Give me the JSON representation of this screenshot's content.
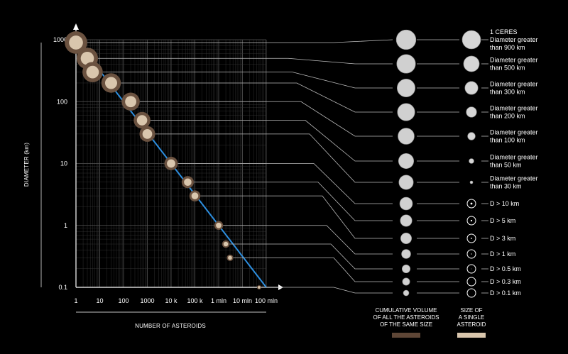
{
  "chart_data": {
    "type": "scatter",
    "title": "",
    "xlabel": "NUMBER OF ASTEROIDS",
    "ylabel": "DIAMETER (km)",
    "x_scale": "log",
    "y_scale": "log",
    "xlim": [
      1,
      100000000
    ],
    "ylim": [
      0.1,
      1000
    ],
    "grid": true,
    "x_ticks": [
      "1",
      "10",
      "100",
      "1000",
      "10 k",
      "100 k",
      "1 mln",
      "10 mln",
      "100 mln"
    ],
    "y_ticks": [
      "1000",
      "100",
      "10",
      "1",
      "0.1"
    ],
    "series": [
      {
        "name": "CUMULATIVE VOLUME OF ALL THE ASTEROIDS OF THE SAME SIZE",
        "points": [
          {
            "x": 1,
            "y": 900,
            "label": "1 CERES Diameter greater than 900 km"
          },
          {
            "x": 3,
            "y": 500,
            "label": "Diameter greater than 500 km"
          },
          {
            "x": 5,
            "y": 300,
            "label": "Diameter greater than 300 km"
          },
          {
            "x": 30,
            "y": 200,
            "label": "Diameter greater than 200 km"
          },
          {
            "x": 200,
            "y": 100,
            "label": "Diameter greater than 100 km"
          },
          {
            "x": 600,
            "y": 50,
            "label": "Diameter greater than 50 km"
          },
          {
            "x": 1000,
            "y": 30,
            "label": "Diameter greater than 30 km"
          },
          {
            "x": 10000,
            "y": 10,
            "label": "D > 10 km"
          },
          {
            "x": 50000,
            "y": 5,
            "label": "D > 5 km"
          },
          {
            "x": 100000,
            "y": 3,
            "label": "D > 3 km"
          },
          {
            "x": 1000000,
            "y": 1,
            "label": "D > 1 km"
          },
          {
            "x": 2000000,
            "y": 0.5,
            "label": "D > 0.5 km"
          },
          {
            "x": 3000000,
            "y": 0.3,
            "label": "D > 0.3 km"
          },
          {
            "x": 50000000,
            "y": 0.1,
            "label": "D > 0.1 km"
          }
        ]
      },
      {
        "name": "SIZE OF A SINGLE ASTEROID",
        "points": []
      }
    ],
    "trend_line": {
      "x": [
        1,
        100000000
      ],
      "y": [
        1000,
        0.1
      ],
      "color": "#2d8fe0"
    },
    "legend": {
      "placement": "bottom-right",
      "items": [
        {
          "text_lines": [
            "CUMULATIVE VOLUME",
            "OF ALL THE ASTEROIDS",
            "OF THE SAME SIZE"
          ],
          "color": "#5e4636"
        },
        {
          "text_lines": [
            "SIZE OF",
            "A SINGLE",
            "ASTEROID"
          ],
          "color": "#d9c6ad"
        }
      ]
    },
    "descriptions": [
      [
        "1 CERES",
        "Diameter greater",
        "than 900 km"
      ],
      [
        "Diameter greater",
        "than 500 km"
      ],
      [
        "Diameter greater",
        "than 300 km"
      ],
      [
        "Diameter greater",
        "than 200 km"
      ],
      [
        "Diameter greater",
        "than 100 km"
      ],
      [
        "Diameter greater",
        "than 50 km"
      ],
      [
        "Diameter greater",
        "than 30 km"
      ],
      [
        "D > 10 km"
      ],
      [
        "D > 5 km"
      ],
      [
        "D > 3 km"
      ],
      [
        "D > 1 km"
      ],
      [
        "D > 0.5 km"
      ],
      [
        "D > 0.3 km"
      ],
      [
        "D > 0.1 km"
      ]
    ],
    "colors": {
      "outer_ring": "#6b5240",
      "inner_fill": "#d9c6ad",
      "leader_line": "#bbbbbb",
      "grid": "#3a3a3a"
    }
  }
}
